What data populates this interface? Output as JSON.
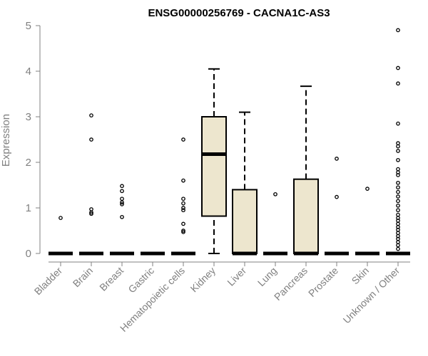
{
  "chart_data": {
    "type": "boxplot",
    "title": "ENSG00000256769 - CACNA1C-AS3",
    "xlabel": "",
    "ylabel": "Expression",
    "ylim": [
      0,
      5
    ],
    "yticks": [
      0,
      1,
      2,
      3,
      4,
      5
    ],
    "grid": false,
    "box_fill": "#ede6ce",
    "series": [
      {
        "name": "Bladder",
        "min": 0,
        "q1": 0,
        "median": 0,
        "q3": 0,
        "max": 0,
        "outliers": [
          0.78
        ]
      },
      {
        "name": "Brain",
        "min": 0,
        "q1": 0,
        "median": 0,
        "q3": 0,
        "max": 0,
        "outliers": [
          3.03,
          2.5,
          0.97,
          0.9,
          0.87
        ]
      },
      {
        "name": "Breast",
        "min": 0,
        "q1": 0,
        "median": 0,
        "q3": 0,
        "max": 0,
        "outliers": [
          1.48,
          1.37,
          1.2,
          1.12,
          1.08,
          0.8
        ]
      },
      {
        "name": "Gastric",
        "min": 0,
        "q1": 0,
        "median": 0,
        "q3": 0,
        "max": 0,
        "outliers": []
      },
      {
        "name": "Hematopoietic cells",
        "min": 0,
        "q1": 0,
        "median": 0,
        "q3": 0,
        "max": 0,
        "outliers": [
          2.5,
          1.6,
          1.2,
          1.1,
          1.0,
          0.95,
          0.65,
          0.5,
          0.47
        ]
      },
      {
        "name": "Kidney",
        "min": 0,
        "q1": 0.82,
        "median": 2.18,
        "q3": 3.0,
        "max": 4.05,
        "outliers": []
      },
      {
        "name": "Liver",
        "min": 0,
        "q1": 0,
        "median": 0,
        "q3": 1.4,
        "max": 3.1,
        "outliers": []
      },
      {
        "name": "Lung",
        "min": 0,
        "q1": 0,
        "median": 0,
        "q3": 0,
        "max": 0,
        "outliers": [
          1.3
        ]
      },
      {
        "name": "Pancreas",
        "min": 0,
        "q1": 0,
        "median": 0,
        "q3": 1.63,
        "max": 3.67,
        "outliers": []
      },
      {
        "name": "Prostate",
        "min": 0,
        "q1": 0,
        "median": 0,
        "q3": 0,
        "max": 0,
        "outliers": [
          2.08,
          1.24
        ]
      },
      {
        "name": "Skin",
        "min": 0,
        "q1": 0,
        "median": 0,
        "q3": 0,
        "max": 0,
        "outliers": [
          1.42
        ]
      },
      {
        "name": "Unknown / Other",
        "min": 0,
        "q1": 0,
        "median": 0,
        "q3": 0,
        "max": 0,
        "outliers": [
          4.9,
          4.07,
          3.73,
          2.85,
          2.42,
          2.35,
          2.25,
          2.05,
          1.85,
          1.78,
          1.72,
          1.55,
          1.45,
          1.35,
          1.25,
          1.15,
          1.05,
          0.95,
          0.85,
          0.78,
          0.72,
          0.65,
          0.58,
          0.52,
          0.45,
          0.38,
          0.32,
          0.25,
          0.18,
          0.1
        ]
      }
    ]
  }
}
